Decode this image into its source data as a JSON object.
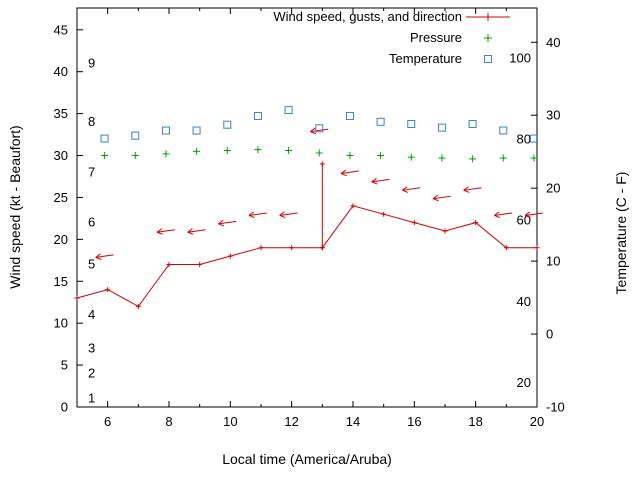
{
  "chart_data": {
    "type": "line",
    "title": "",
    "xlabel": "Local time (America/Aruba)",
    "ylabel_left": "Wind speed (kt - Beaufort)",
    "ylabel_right": "Temperature (C - F)",
    "xlim": [
      5,
      20
    ],
    "ylim_left": [
      0,
      47.6
    ],
    "ylim_right": [
      -10,
      44.7
    ],
    "x_ticks": [
      6,
      8,
      10,
      12,
      14,
      16,
      18,
      20
    ],
    "x_minor_ticks": [
      5,
      7,
      9,
      11,
      13,
      15,
      17,
      19
    ],
    "y_left_ticks": [
      0,
      5,
      10,
      15,
      20,
      25,
      30,
      35,
      40,
      45
    ],
    "y_right_ticks": [
      -10,
      0,
      10,
      20,
      30,
      40
    ],
    "grid": false,
    "legend_position": "top-right",
    "beaufort_scale": [
      {
        "label": "1",
        "kt": 1
      },
      {
        "label": "2",
        "kt": 4
      },
      {
        "label": "3",
        "kt": 7
      },
      {
        "label": "4",
        "kt": 11
      },
      {
        "label": "5",
        "kt": 17
      },
      {
        "label": "6",
        "kt": 22
      },
      {
        "label": "7",
        "kt": 28
      },
      {
        "label": "8",
        "kt": 34
      },
      {
        "label": "9",
        "kt": 41
      }
    ],
    "fahrenheit_scale": [
      {
        "label": "20",
        "c": -6.7
      },
      {
        "label": "40",
        "c": 4.4
      },
      {
        "label": "60",
        "c": 15.6
      },
      {
        "label": "80",
        "c": 26.7
      },
      {
        "label": "100",
        "c": 37.8
      }
    ],
    "legend": [
      {
        "label": "Wind speed, gusts, and direction",
        "series": "wind_speed",
        "marker": "line-plus"
      },
      {
        "label": "Pressure",
        "series": "pressure",
        "marker": "plus"
      },
      {
        "label": "Temperature",
        "series": "temperature",
        "marker": "square"
      }
    ],
    "colors": {
      "wind_speed": "#d40000",
      "pressure": "#00a000",
      "temperature": "#3b7dd8"
    },
    "series": [
      {
        "name": "wind_speed",
        "type": "linespoints",
        "axis": "left",
        "color": "#d40000",
        "x": [
          5,
          6,
          7,
          8,
          9,
          10,
          11,
          12,
          13,
          13,
          13,
          14,
          15,
          16,
          17,
          18,
          19,
          20
        ],
        "y": [
          13,
          14,
          12,
          17,
          17,
          18,
          19,
          19,
          19,
          29,
          19,
          24,
          23,
          22,
          21,
          22,
          19,
          19
        ]
      },
      {
        "name": "wind_gust_direction",
        "type": "arrows",
        "axis": "left",
        "color": "#d40000",
        "x": [
          5.9,
          7.9,
          8.9,
          9.9,
          10.9,
          11.9,
          12.9,
          13.9,
          14.9,
          15.9,
          16.9,
          17.9,
          18.9,
          19.9
        ],
        "y": [
          18,
          21,
          21,
          22,
          23,
          23,
          33,
          28,
          27,
          26,
          25,
          26,
          23,
          23
        ]
      },
      {
        "name": "pressure",
        "type": "points",
        "marker": "plus",
        "axis": "left",
        "color": "#00a000",
        "x": [
          5.9,
          6.9,
          7.9,
          8.9,
          9.9,
          10.9,
          11.9,
          12.9,
          13.9,
          14.9,
          15.9,
          16.9,
          17.9,
          18.9,
          19.9
        ],
        "y": [
          30,
          30,
          30.2,
          30.5,
          30.6,
          30.7,
          30.6,
          30.3,
          30,
          30,
          29.8,
          29.7,
          29.6,
          29.7,
          29.7
        ]
      },
      {
        "name": "temperature",
        "type": "points",
        "marker": "open-square",
        "axis": "right",
        "color": "#3b7dd8",
        "x": [
          5.9,
          6.9,
          7.9,
          8.9,
          9.9,
          10.9,
          11.9,
          12.9,
          13.9,
          14.9,
          15.9,
          16.9,
          17.9,
          18.9,
          19.9
        ],
        "y": [
          26.8,
          27.2,
          27.9,
          27.9,
          28.7,
          29.9,
          30.7,
          28.2,
          29.9,
          29.1,
          28.8,
          28.3,
          28.8,
          27.9,
          26.8
        ]
      }
    ]
  }
}
